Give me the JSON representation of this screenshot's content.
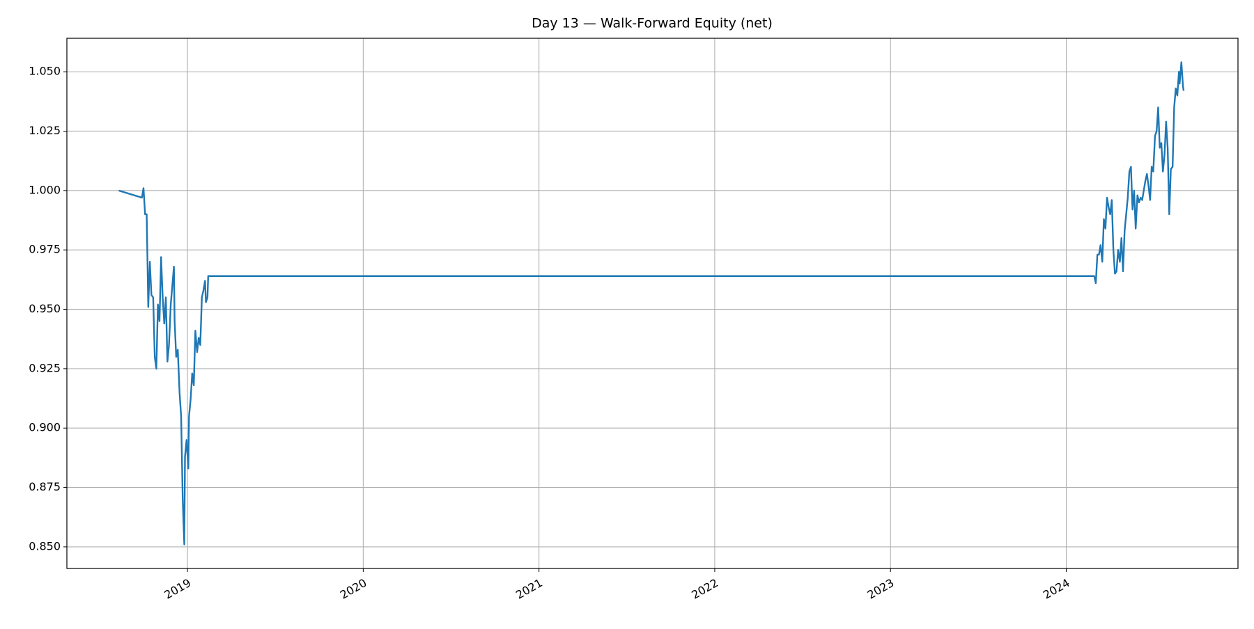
{
  "chart_data": {
    "type": "line",
    "title": "Day 13 — Walk-Forward Equity (net)",
    "x": [
      2018.609,
      2018.741,
      2018.75,
      2018.759,
      2018.768,
      2018.777,
      2018.786,
      2018.795,
      2018.805,
      2018.814,
      2018.823,
      2018.832,
      2018.841,
      2018.85,
      2018.859,
      2018.868,
      2018.877,
      2018.886,
      2018.895,
      2018.905,
      2018.914,
      2018.923,
      2018.927,
      2018.936,
      2018.945,
      2018.955,
      2018.964,
      2018.973,
      2018.982,
      2018.986,
      2018.995,
      2019.005,
      2019.009,
      2019.018,
      2019.027,
      2019.036,
      2019.045,
      2019.055,
      2019.064,
      2019.073,
      2019.082,
      2019.091,
      2019.1,
      2019.105,
      2019.114,
      2019.118,
      2024.159,
      2024.168,
      2024.177,
      2024.186,
      2024.195,
      2024.205,
      2024.214,
      2024.223,
      2024.232,
      2024.241,
      2024.25,
      2024.259,
      2024.268,
      2024.277,
      2024.286,
      2024.295,
      2024.305,
      2024.314,
      2024.323,
      2024.332,
      2024.341,
      2024.35,
      2024.359,
      2024.368,
      2024.377,
      2024.386,
      2024.395,
      2024.405,
      2024.414,
      2024.423,
      2024.432,
      2024.441,
      2024.45,
      2024.459,
      2024.468,
      2024.477,
      2024.486,
      2024.495,
      2024.505,
      2024.514,
      2024.523,
      2024.532,
      2024.541,
      2024.55,
      2024.559,
      2024.568,
      2024.577,
      2024.586,
      2024.595,
      2024.605,
      2024.614,
      2024.623,
      2024.632,
      2024.641,
      2024.645,
      2024.655,
      2024.664,
      2024.668
    ],
    "series": [
      {
        "color": "#1f77b4",
        "values": [
          1.0,
          0.997,
          1.001,
          0.99,
          0.99,
          0.951,
          0.97,
          0.956,
          0.955,
          0.93,
          0.925,
          0.952,
          0.945,
          0.972,
          0.955,
          0.944,
          0.955,
          0.928,
          0.935,
          0.952,
          0.96,
          0.968,
          0.945,
          0.93,
          0.933,
          0.915,
          0.905,
          0.87,
          0.851,
          0.888,
          0.895,
          0.883,
          0.905,
          0.912,
          0.923,
          0.918,
          0.941,
          0.932,
          0.938,
          0.935,
          0.955,
          0.958,
          0.962,
          0.953,
          0.955,
          0.964,
          0.964,
          0.961,
          0.973,
          0.973,
          0.977,
          0.97,
          0.988,
          0.984,
          0.997,
          0.993,
          0.99,
          0.996,
          0.975,
          0.965,
          0.966,
          0.975,
          0.97,
          0.98,
          0.966,
          0.983,
          0.99,
          0.997,
          1.008,
          1.01,
          0.992,
          1.0,
          0.984,
          0.998,
          0.995,
          0.997,
          0.996,
          1.0,
          1.004,
          1.007,
          1.002,
          0.996,
          1.01,
          1.008,
          1.023,
          1.025,
          1.035,
          1.018,
          1.02,
          1.008,
          1.015,
          1.029,
          1.018,
          0.99,
          1.009,
          1.01,
          1.035,
          1.043,
          1.04,
          1.05,
          1.045,
          1.054,
          1.044,
          1.042
        ]
      }
    ],
    "xlim": [
      2018.314,
      2024.977
    ],
    "xticks": [
      2019,
      2020,
      2021,
      2022,
      2023,
      2024
    ],
    "ylim": [
      0.8409,
      1.0641
    ],
    "yticks": [
      {
        "value": 0.85,
        "label": "0.850"
      },
      0.875,
      {
        "value": 0.9,
        "label": "0.900"
      },
      0.925,
      {
        "value": 0.95,
        "label": "0.950"
      },
      0.975,
      {
        "value": 1.0,
        "label": "1.000"
      },
      1.025,
      {
        "value": 1.05,
        "label": "1.050"
      }
    ],
    "grid": true
  }
}
